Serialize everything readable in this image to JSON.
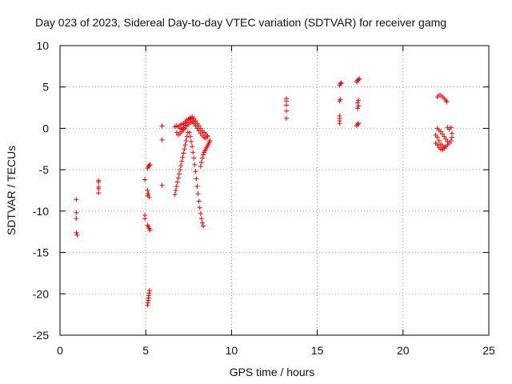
{
  "chart_data": {
    "type": "scatter",
    "title": "Day 023 of 2023, Sidereal Day-to-day VTEC variation (SDTVAR) for receiver gamg",
    "xlabel": "GPS time / hours",
    "ylabel": "SDTVAR / TECUs",
    "xlim": [
      0,
      25
    ],
    "ylim": [
      -25,
      10
    ],
    "xticks": [
      0,
      5,
      10,
      15,
      20,
      25
    ],
    "xtick_labels": [
      "0",
      "5",
      "10",
      "15",
      "20",
      "25"
    ],
    "yticks": [
      -25,
      -20,
      -15,
      -10,
      -5,
      0,
      5,
      10
    ],
    "ytick_labels": [
      "-25",
      "-20",
      "-15",
      "-10",
      "-5",
      "0",
      "5",
      "10"
    ],
    "grid": true,
    "marker": "+",
    "color": "#ff0000",
    "series": [
      {
        "name": "SDTVAR",
        "points": [
          [
            0.95,
            -8.6
          ],
          [
            0.95,
            -10.2
          ],
          [
            0.95,
            -10.9
          ],
          [
            0.95,
            -12.6
          ],
          [
            1.0,
            -12.9
          ],
          [
            2.25,
            -6.3
          ],
          [
            2.25,
            -6.5
          ],
          [
            2.25,
            -7.1
          ],
          [
            2.25,
            -7.3
          ],
          [
            2.25,
            -7.8
          ],
          [
            4.95,
            -6.2
          ],
          [
            4.95,
            -10.5
          ],
          [
            4.95,
            -10.9
          ],
          [
            5.1,
            -4.8
          ],
          [
            5.15,
            -4.6
          ],
          [
            5.2,
            -4.5
          ],
          [
            5.25,
            -4.4
          ],
          [
            5.1,
            -7.5
          ],
          [
            5.1,
            -8.1
          ],
          [
            5.15,
            -7.9
          ],
          [
            5.2,
            -8.3
          ],
          [
            5.1,
            -11.7
          ],
          [
            5.15,
            -11.9
          ],
          [
            5.2,
            -12.1
          ],
          [
            5.25,
            -12.3
          ],
          [
            5.1,
            -21.4
          ],
          [
            5.12,
            -21.1
          ],
          [
            5.14,
            -20.8
          ],
          [
            5.16,
            -20.5
          ],
          [
            5.18,
            -20.2
          ],
          [
            5.2,
            -19.9
          ],
          [
            5.22,
            -19.6
          ],
          [
            5.95,
            0.3
          ],
          [
            5.95,
            -1.4
          ],
          [
            5.95,
            -6.9
          ],
          [
            6.7,
            -8.0
          ],
          [
            6.75,
            -7.5
          ],
          [
            6.8,
            -7.0
          ],
          [
            6.85,
            -6.5
          ],
          [
            6.9,
            -6.0
          ],
          [
            6.95,
            -5.5
          ],
          [
            7.0,
            -5.0
          ],
          [
            7.05,
            -4.5
          ],
          [
            7.1,
            -4.0
          ],
          [
            7.15,
            -3.5
          ],
          [
            7.2,
            -3.0
          ],
          [
            7.25,
            -2.5
          ],
          [
            7.3,
            -2.0
          ],
          [
            7.35,
            -1.5
          ],
          [
            7.4,
            -1.0
          ],
          [
            7.45,
            -0.5
          ],
          [
            6.7,
            0.2
          ],
          [
            6.8,
            0.3
          ],
          [
            6.9,
            0.2
          ],
          [
            7.0,
            0.0
          ],
          [
            7.1,
            -0.1
          ],
          [
            7.2,
            0.1
          ],
          [
            7.3,
            0.4
          ],
          [
            7.4,
            0.7
          ],
          [
            7.5,
            1.0
          ],
          [
            7.6,
            1.2
          ],
          [
            7.7,
            1.4
          ],
          [
            7.8,
            1.2
          ],
          [
            7.9,
            0.9
          ],
          [
            8.0,
            0.6
          ],
          [
            8.1,
            0.3
          ],
          [
            8.2,
            0.0
          ],
          [
            8.3,
            -0.3
          ],
          [
            8.4,
            -0.5
          ],
          [
            8.5,
            -0.7
          ],
          [
            8.6,
            -0.9
          ],
          [
            6.8,
            -0.5
          ],
          [
            6.9,
            -0.8
          ],
          [
            7.0,
            -0.6
          ],
          [
            7.1,
            -0.4
          ],
          [
            7.2,
            -0.2
          ],
          [
            7.3,
            0.0
          ],
          [
            7.4,
            0.3
          ],
          [
            7.5,
            0.5
          ],
          [
            7.6,
            0.7
          ],
          [
            7.7,
            0.8
          ],
          [
            7.8,
            0.6
          ],
          [
            7.9,
            0.3
          ],
          [
            8.0,
            0.0
          ],
          [
            8.1,
            -0.3
          ],
          [
            8.2,
            -0.6
          ],
          [
            8.3,
            -0.9
          ],
          [
            8.4,
            -1.1
          ],
          [
            8.5,
            -1.2
          ],
          [
            8.6,
            -1.0
          ],
          [
            7.0,
            0.4
          ],
          [
            7.1,
            0.5
          ],
          [
            7.2,
            0.6
          ],
          [
            7.3,
            0.8
          ],
          [
            7.4,
            1.0
          ],
          [
            7.5,
            1.1
          ],
          [
            7.6,
            1.3
          ],
          [
            7.7,
            1.1
          ],
          [
            7.8,
            0.9
          ],
          [
            7.9,
            0.6
          ],
          [
            7.55,
            -0.5
          ],
          [
            7.6,
            -1.0
          ],
          [
            7.65,
            -1.6
          ],
          [
            7.7,
            -2.2
          ],
          [
            7.75,
            -2.9
          ],
          [
            7.8,
            -3.6
          ],
          [
            7.85,
            -4.4
          ],
          [
            7.9,
            -5.2
          ],
          [
            7.95,
            -6.1
          ],
          [
            8.0,
            -7.0
          ],
          [
            8.05,
            -7.9
          ],
          [
            8.1,
            -8.8
          ],
          [
            8.15,
            -9.6
          ],
          [
            8.2,
            -10.3
          ],
          [
            8.25,
            -10.9
          ],
          [
            8.3,
            -11.4
          ],
          [
            8.35,
            -11.8
          ],
          [
            8.2,
            -4.6
          ],
          [
            8.25,
            -4.1
          ],
          [
            8.3,
            -3.6
          ],
          [
            8.35,
            -3.2
          ],
          [
            8.4,
            -2.9
          ],
          [
            8.45,
            -2.7
          ],
          [
            8.5,
            -2.5
          ],
          [
            8.55,
            -2.3
          ],
          [
            8.6,
            -2.1
          ],
          [
            8.65,
            -1.9
          ],
          [
            8.7,
            -1.7
          ],
          [
            8.75,
            -1.5
          ],
          [
            13.2,
            1.2
          ],
          [
            13.2,
            2.1
          ],
          [
            13.2,
            2.8
          ],
          [
            13.2,
            3.3
          ],
          [
            13.2,
            3.6
          ],
          [
            16.3,
            0.6
          ],
          [
            16.3,
            0.9
          ],
          [
            16.3,
            1.2
          ],
          [
            16.3,
            1.5
          ],
          [
            16.3,
            3.3
          ],
          [
            16.35,
            3.5
          ],
          [
            16.3,
            5.2
          ],
          [
            16.35,
            5.4
          ],
          [
            16.4,
            5.5
          ],
          [
            17.3,
            0.3
          ],
          [
            17.35,
            0.5
          ],
          [
            17.4,
            0.6
          ],
          [
            17.35,
            2.4
          ],
          [
            17.4,
            2.7
          ],
          [
            17.35,
            3.1
          ],
          [
            17.4,
            3.4
          ],
          [
            17.3,
            5.6
          ],
          [
            17.35,
            5.8
          ],
          [
            17.4,
            5.9
          ],
          [
            17.45,
            6.0
          ],
          [
            22.0,
            3.8
          ],
          [
            22.1,
            4.0
          ],
          [
            22.2,
            4.0
          ],
          [
            22.3,
            3.8
          ],
          [
            22.4,
            3.6
          ],
          [
            22.5,
            3.4
          ],
          [
            22.55,
            3.2
          ],
          [
            22.0,
            0.0
          ],
          [
            22.1,
            -0.2
          ],
          [
            22.2,
            -0.4
          ],
          [
            22.3,
            -0.7
          ],
          [
            22.4,
            -1.0
          ],
          [
            22.5,
            -1.3
          ],
          [
            22.6,
            -1.6
          ],
          [
            22.7,
            -1.8
          ],
          [
            22.8,
            -1.5
          ],
          [
            21.9,
            -0.8
          ],
          [
            22.0,
            -1.1
          ],
          [
            22.1,
            -1.5
          ],
          [
            22.2,
            -1.9
          ],
          [
            22.3,
            -2.1
          ],
          [
            22.4,
            -2.3
          ],
          [
            22.5,
            -2.2
          ],
          [
            22.6,
            -2.0
          ],
          [
            21.9,
            -1.8
          ],
          [
            22.0,
            -2.0
          ],
          [
            22.1,
            -2.3
          ],
          [
            22.2,
            -2.5
          ],
          [
            22.3,
            -2.6
          ],
          [
            22.4,
            -2.4
          ],
          [
            22.6,
            0.1
          ],
          [
            22.7,
            -0.1
          ],
          [
            22.8,
            0.1
          ],
          [
            22.85,
            -0.6
          ],
          [
            22.85,
            -1.1
          ]
        ]
      }
    ]
  }
}
